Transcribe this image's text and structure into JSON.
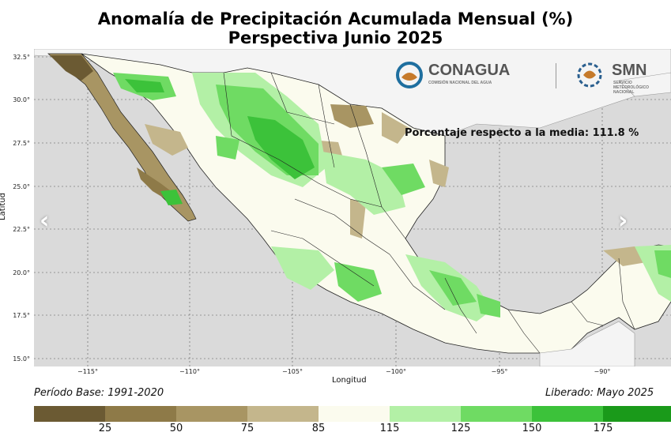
{
  "title_line1": "Anomalía de Precipitación Acumulada Mensual (%)",
  "title_line2": "Perspectiva Junio 2025",
  "axes": {
    "ylabel": "Latitud",
    "xlabel": "Longitud",
    "y_ticks": [
      "32.5°",
      "30.0°",
      "27.5°",
      "25.0°",
      "22.5°",
      "20.0°",
      "17.5°",
      "15.0°"
    ],
    "x_ticks": [
      "−115°",
      "−110°",
      "−105°",
      "−100°",
      "−95°",
      "−90°"
    ]
  },
  "logos": {
    "conagua_name": "CONAGUA",
    "conagua_sub": "COMISIÓN NACIONAL DEL AGUA",
    "smn_name": "SMN",
    "smn_sub": "SERVICIO METEOROLÓGICO NACIONAL"
  },
  "annotation": "Porcentaje respecto a la media: 111.8 %",
  "footer": {
    "base_period": "Período Base: 1991-2020",
    "released": "Liberado: Mayo 2025"
  },
  "colorbar": {
    "colors": [
      "#6b5a33",
      "#8e7a48",
      "#a89563",
      "#c4b68c",
      "#fbfbee",
      "#fbfbee",
      "#b3f0a6",
      "#6fdb63",
      "#3cc23a",
      "#1a9a1a"
    ],
    "ticks": [
      "25",
      "50",
      "75",
      "85",
      "115",
      "125",
      "150",
      "175"
    ]
  },
  "colors": {
    "ocean": "#dadada",
    "land_neutral": "#fbfbee",
    "dry": "#a89563",
    "wet_light": "#b3f0a6",
    "wet_mid": "#6fdb63",
    "wet_dark": "#3cc23a"
  },
  "nav": {
    "prev": "‹",
    "next": "›"
  }
}
